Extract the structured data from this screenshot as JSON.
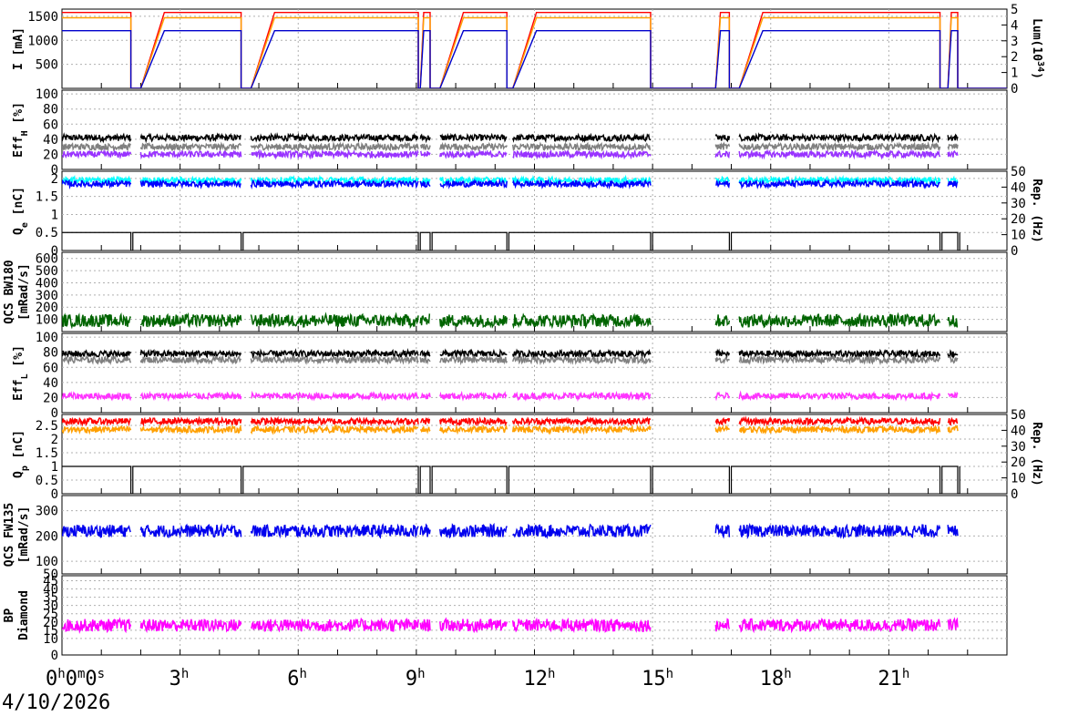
{
  "chart_data": {
    "type": "line",
    "date": "4/10/2026",
    "x_axis": {
      "unit": "hours",
      "range": [
        0,
        24
      ],
      "tick_labels": [
        {
          "hour": 0,
          "base": "0",
          "sup": "h",
          "rest": "0",
          "sup2": "m",
          "rest2": "0",
          "sup3": "s"
        },
        {
          "hour": 3,
          "base": "3",
          "sup": "h"
        },
        {
          "hour": 6,
          "base": "6",
          "sup": "h"
        },
        {
          "hour": 9,
          "base": "9",
          "sup": "h"
        },
        {
          "hour": 12,
          "base": "12",
          "sup": "h"
        },
        {
          "hour": 15,
          "base": "15",
          "sup": "h"
        },
        {
          "hour": 18,
          "base": "18",
          "sup": "h"
        },
        {
          "hour": 21,
          "base": "21",
          "sup": "h"
        }
      ]
    },
    "beam_segments_hours": [
      [
        0,
        1.75
      ],
      [
        2.0,
        4.55
      ],
      [
        4.8,
        9.05
      ],
      [
        9.1,
        9.35
      ],
      [
        9.6,
        11.3
      ],
      [
        11.45,
        14.95
      ],
      [
        16.6,
        16.95
      ],
      [
        17.2,
        22.3
      ],
      [
        22.5,
        22.75
      ]
    ],
    "panels": [
      {
        "id": "current",
        "ylabel": "I [mA]",
        "yticks": [
          "500",
          "1000",
          "1500"
        ],
        "ylim": [
          0,
          1650
        ],
        "ylabel_right": "Lum(10",
        "ylabel_right_sup": "34",
        "ylabel_right_end": ")",
        "yticks_right": [
          "0",
          "1",
          "2",
          "3",
          "4",
          "5"
        ],
        "ylim_right": [
          0,
          5
        ],
        "series": [
          {
            "color": "#ff0000",
            "plateau": 1580
          },
          {
            "color": "#ffa000",
            "plateau": 1470
          },
          {
            "color": "#0000cc",
            "plateau": 1200
          }
        ]
      },
      {
        "id": "eff-h",
        "ylabel": "Eff",
        "ylabel_sub": "H",
        "ylabel_end": " [%]",
        "yticks": [
          "0",
          "20",
          "40",
          "60",
          "80",
          "100"
        ],
        "ylim": [
          0,
          105
        ],
        "series": [
          {
            "color": "#000000",
            "level": 42
          },
          {
            "color": "#808080",
            "level": 30
          },
          {
            "color": "#9933ff",
            "level": 20
          }
        ]
      },
      {
        "id": "qe",
        "ylabel": "Q",
        "ylabel_sub": "e",
        "ylabel_end": " [nC]",
        "yticks": [
          "0",
          "0.5",
          "1",
          "1.5",
          "2"
        ],
        "ylim": [
          0,
          2.2
        ],
        "ylabel_right": "Rep. (Hz)",
        "yticks_right": [
          "0",
          "10",
          "20",
          "30",
          "40",
          "50"
        ],
        "ylim_right": [
          0,
          50
        ],
        "series": [
          {
            "color": "#00ffff",
            "level": 1.95
          },
          {
            "color": "#0000ff",
            "level": 1.85
          },
          {
            "color": "#000000",
            "type": "step",
            "level": 0.5
          }
        ]
      },
      {
        "id": "qcs-bw180",
        "ylabel": "QCS BW180",
        "ylabel2": "[mRad/s]",
        "yticks": [
          "100",
          "200",
          "300",
          "400",
          "500",
          "600"
        ],
        "ylim": [
          0,
          650
        ],
        "series": [
          {
            "color": "#006400",
            "level": 90
          }
        ]
      },
      {
        "id": "eff-l",
        "ylabel": "Eff",
        "ylabel_sub": "L",
        "ylabel_end": " [%]",
        "yticks": [
          "0",
          "20",
          "40",
          "60",
          "80",
          "100"
        ],
        "ylim": [
          0,
          105
        ],
        "series": [
          {
            "color": "#000000",
            "level": 78
          },
          {
            "color": "#808080",
            "level": 70
          },
          {
            "color": "#ff33ff",
            "level": 22
          }
        ]
      },
      {
        "id": "qp",
        "ylabel": "Q",
        "ylabel_sub": "p",
        "ylabel_end": " [nC]",
        "yticks": [
          "0",
          "0.5",
          "1",
          "1.5",
          "2",
          "2.5"
        ],
        "ylim": [
          0,
          2.9
        ],
        "ylabel_right": "Rep. (Hz)",
        "yticks_right": [
          "0",
          "10",
          "20",
          "30",
          "40",
          "50"
        ],
        "ylim_right": [
          0,
          50
        ],
        "series": [
          {
            "color": "#ff0000",
            "level": 2.65
          },
          {
            "color": "#ffa000",
            "level": 2.35
          },
          {
            "color": "#000000",
            "type": "step",
            "level": 1.0
          }
        ]
      },
      {
        "id": "qcs-fw135",
        "ylabel": "QCS FW135",
        "ylabel2": "[mRad/s]",
        "yticks": [
          "50",
          "100",
          "200",
          "300"
        ],
        "ylim": [
          50,
          360
        ],
        "series": [
          {
            "color": "#0000ee",
            "level": 220
          }
        ]
      },
      {
        "id": "bp-diamond",
        "ylabel": "BP",
        "ylabel2": "Diamond",
        "yticks": [
          "0",
          "10",
          "15",
          "20",
          "25",
          "30",
          "35",
          "40",
          "45"
        ],
        "ylim": [
          0,
          48
        ],
        "series": [
          {
            "color": "#ff00ff",
            "level": 18
          }
        ]
      }
    ]
  }
}
